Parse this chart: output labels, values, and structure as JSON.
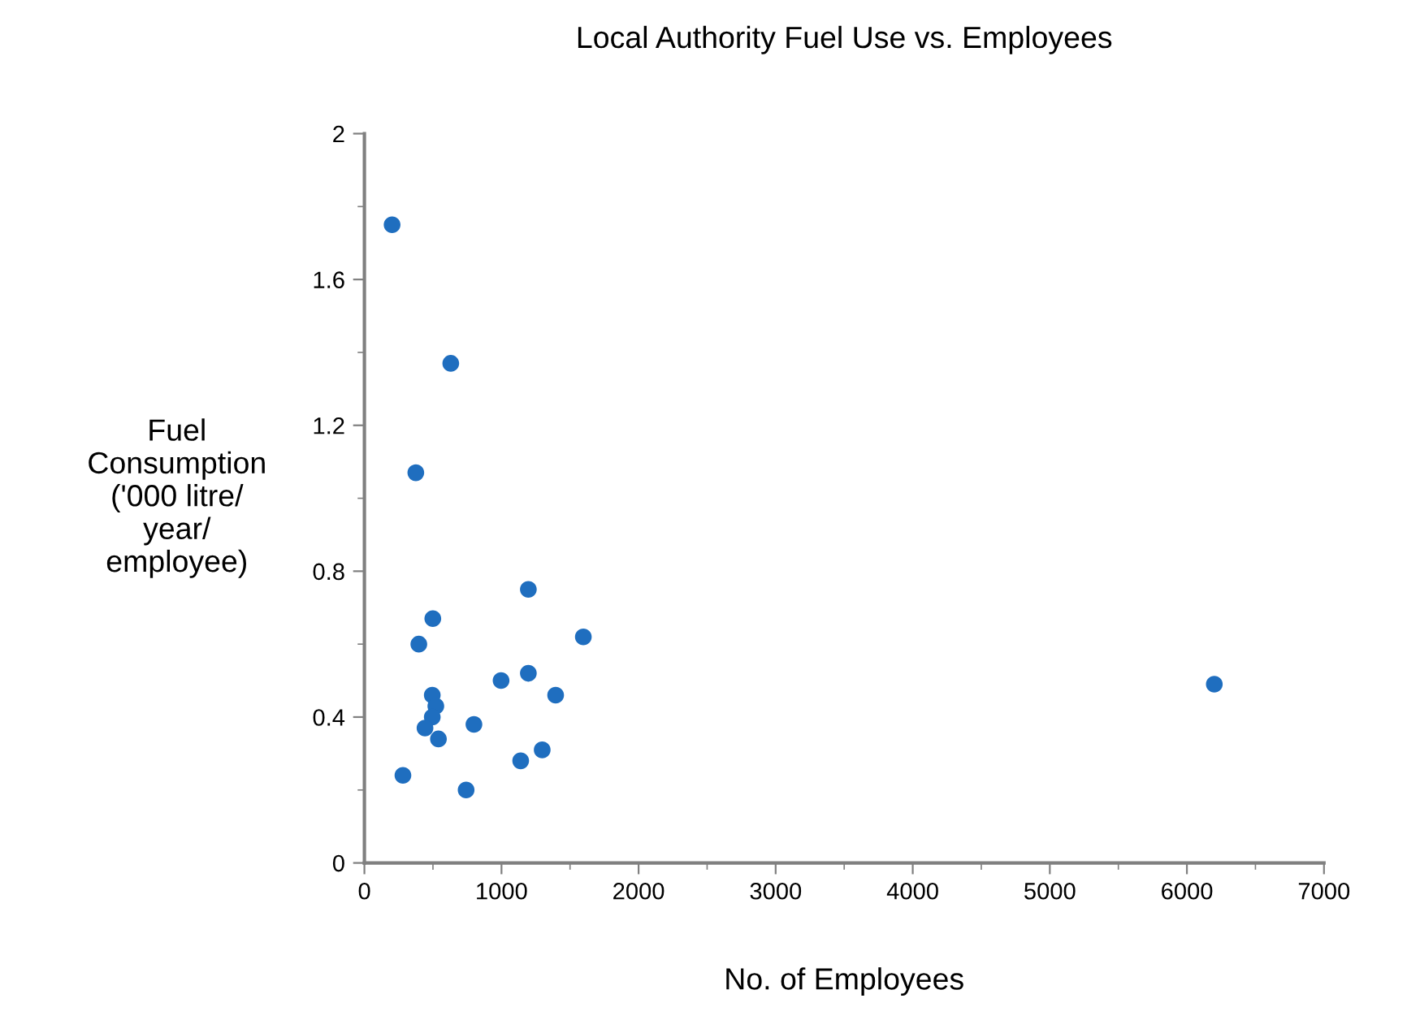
{
  "chart_data": {
    "type": "scatter",
    "title": "Local Authority Fuel Use vs. Employees",
    "xlabel": "No. of Employees",
    "ylabel": "Fuel\nConsumption\n('000 litre/\nyear/\nemployee)",
    "x": [
      202,
      630,
      375,
      1196,
      499,
      397,
      1597,
      1196,
      997,
      1395,
      495,
      521,
      495,
      442,
      540,
      799,
      281,
      742,
      1140,
      1297,
      6200
    ],
    "values": [
      1.75,
      1.37,
      1.07,
      0.75,
      0.67,
      0.6,
      0.62,
      0.52,
      0.5,
      0.46,
      0.46,
      0.43,
      0.4,
      0.37,
      0.34,
      0.38,
      0.24,
      0.2,
      0.28,
      0.31,
      0.49
    ],
    "color": "#1f6ebf",
    "marker": "circle",
    "grid": false,
    "legend": false,
    "xlim": [
      0,
      7000
    ],
    "xticks": [
      0,
      1000,
      2000,
      3000,
      4000,
      5000,
      6000,
      7000
    ],
    "ylim": [
      0,
      2
    ],
    "yticks": [
      0,
      0.4,
      0.8,
      1.2,
      1.6,
      2
    ]
  }
}
